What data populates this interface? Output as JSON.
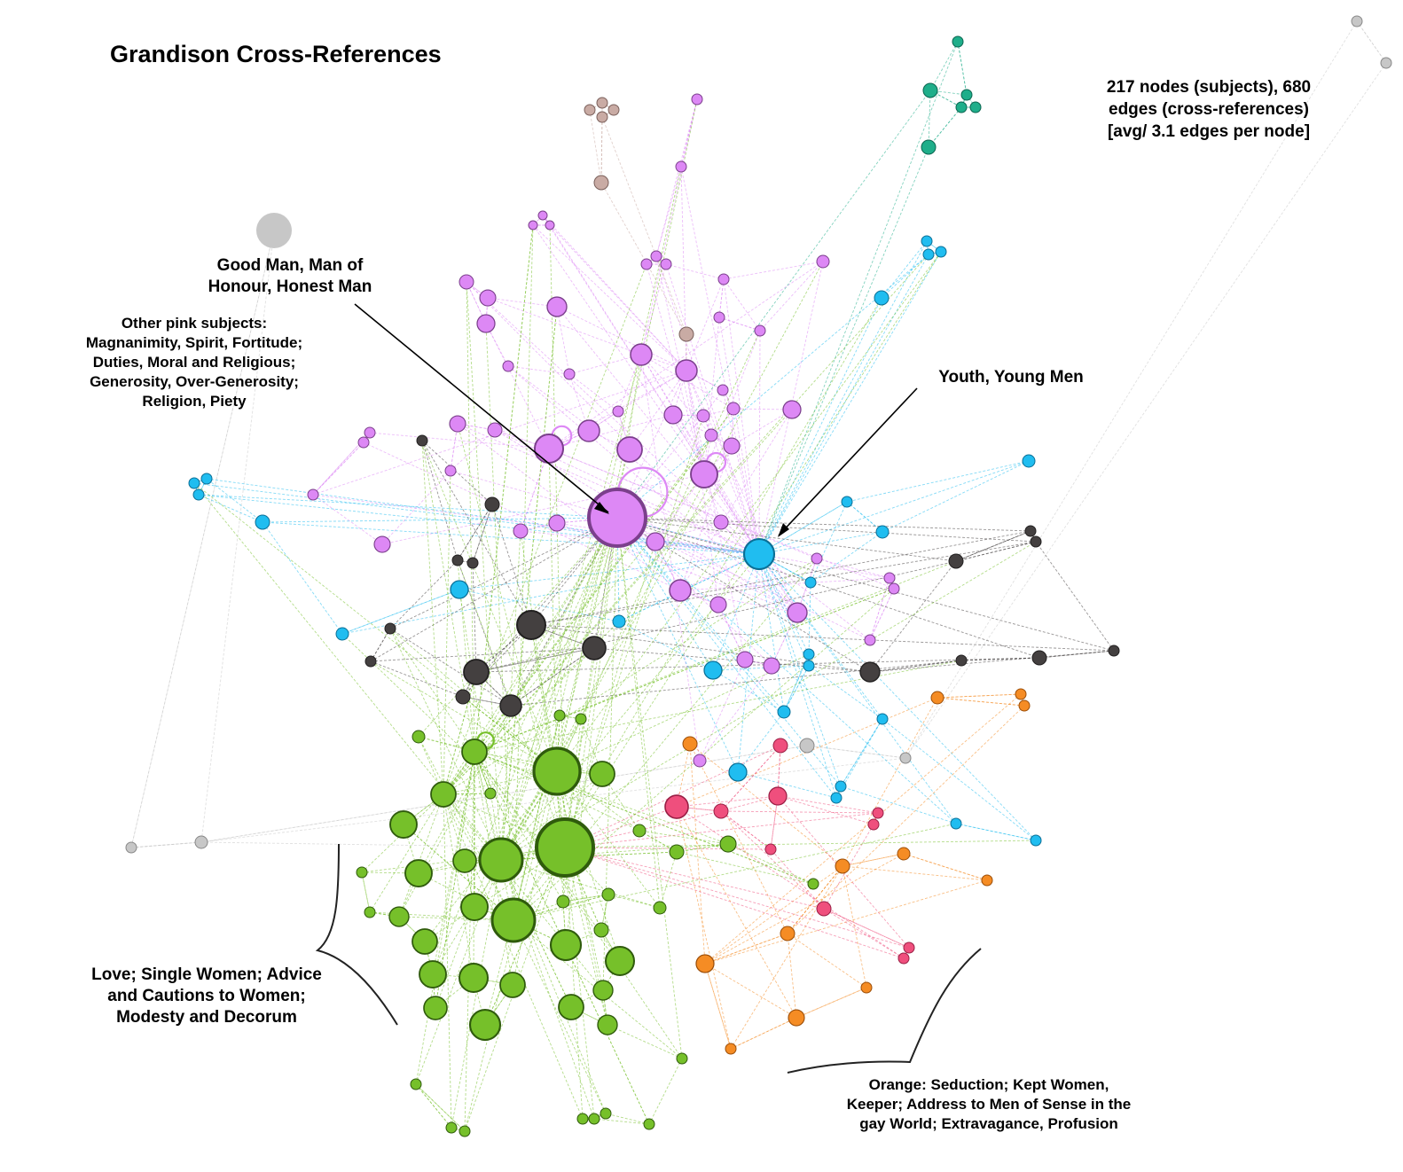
{
  "title": "Grandison Cross-References",
  "stats": [
    "217 nodes (subjects), 680",
    "edges (cross-references)",
    "[avg/ 3.1 edges per node]"
  ],
  "labels": {
    "good_man": [
      "Good Man, Man of",
      "Honour, Honest Man"
    ],
    "other_pink": [
      "Other pink subjects:",
      "Magnanimity, Spirit, Fortitude;",
      "Duties, Moral and Religious;",
      "Generosity, Over-Generosity;",
      "Religion, Piety"
    ],
    "youth": [
      "Youth, Young Men"
    ],
    "love": [
      "Love; Single Women; Advice",
      "and Cautions to Women;",
      "Modesty and Decorum"
    ],
    "orange": [
      "Orange: Seduction; Kept Women,",
      "Keeper; Address to Men of Sense in the",
      "gay World; Extravagance, Profusion"
    ]
  },
  "colors": {
    "pink": "#dd88f5",
    "blue": "#20bdf0",
    "dark": "#444040",
    "green": "#76c02a",
    "orange": "#f58c24",
    "red": "#ef4f7d",
    "teal": "#1fae8a",
    "taupe": "#c9aba4",
    "gray": "#c7c7c7"
  },
  "hubs": {
    "good_man": "Good Man, Man of Honour, Honest Man",
    "youth": "Youth, Young Men",
    "love": "Love; Single Women; Advice and Cautions to Women; Modesty and Decorum",
    "orange": "Seduction; Kept Women, Keeper; Address to Men of Sense in the gay World; Extravagance, Profusion"
  }
}
